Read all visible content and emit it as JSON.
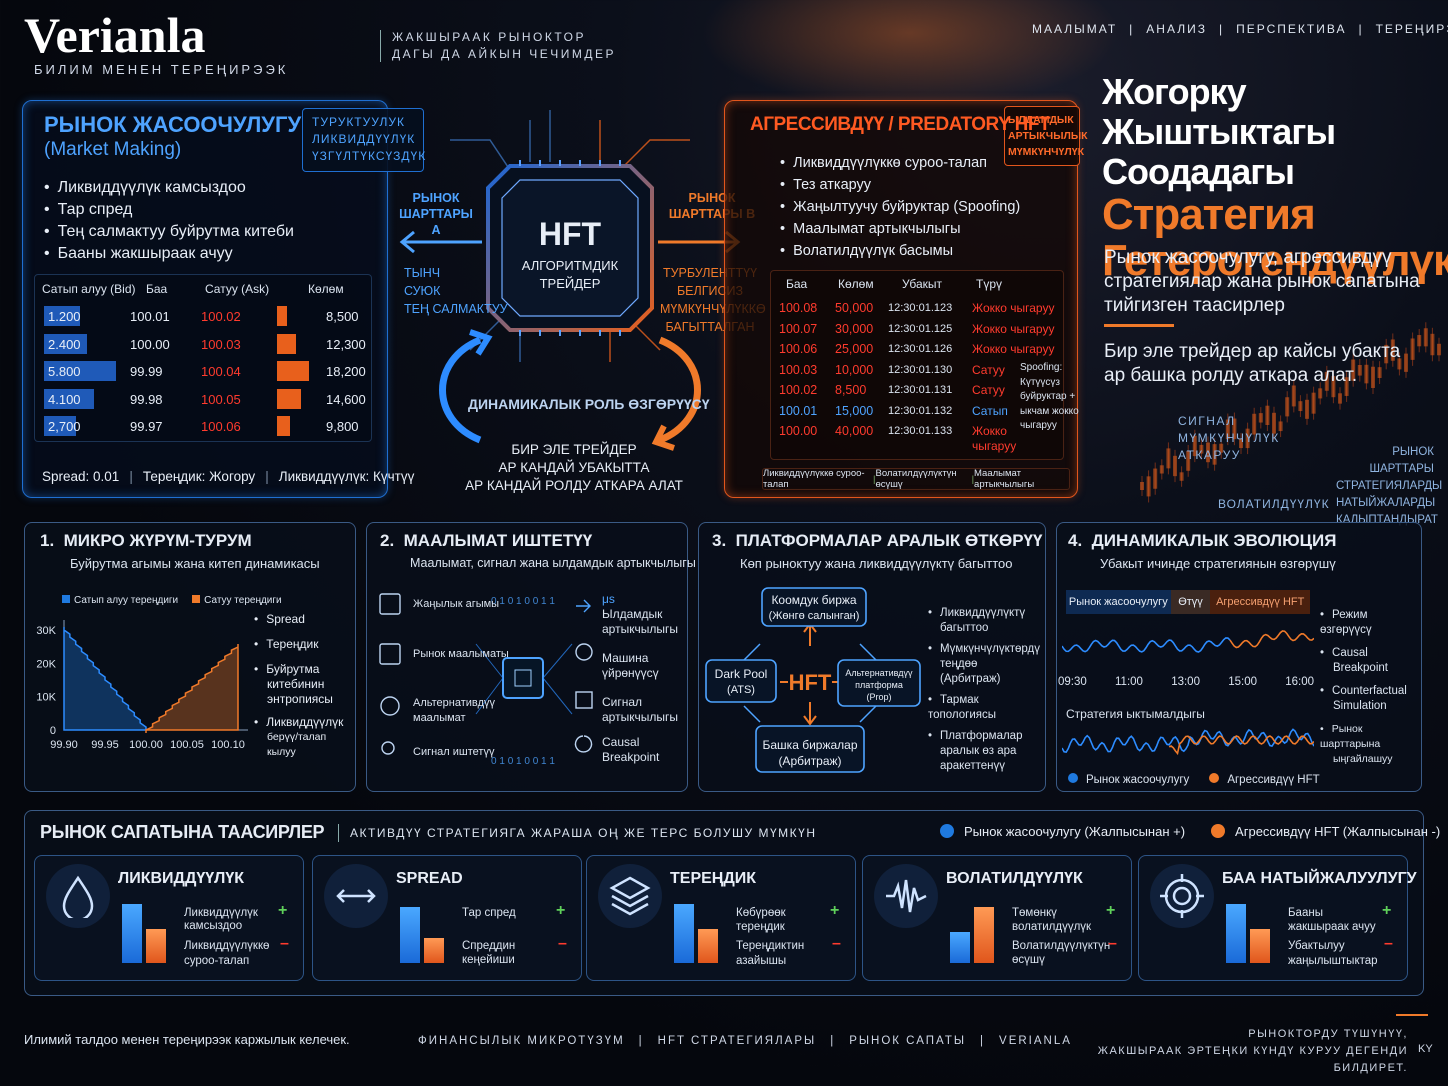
{
  "brand": {
    "logo": "Verianla",
    "tagline": "БИЛИМ МЕНЕН ТЕРЕҢИРЭЭК",
    "slogan_1": "ЖАКШЫРААК РЫНОКТОР",
    "slogan_2": "ДАГЫ ДА АЙКЫН ЧЕЧИМДЕР"
  },
  "topnav": [
    "МААЛЫМАТ",
    "|",
    "АНАЛИЗ",
    "|",
    "ПЕРСПЕКТИВА",
    "|",
    "ТЕРЕҢИРЭЭК"
  ],
  "hero": {
    "title_1": "Жогорку Жыштыктагы",
    "title_2": "Соодадагы",
    "title_3": "Стратегия",
    "title_4": "Гетерогендүүлүк",
    "desc_1": "Рынок жасоочулугу, агрессивдүү",
    "desc_2": "стратегиялар жана рынок сапатына",
    "desc_3": "тийгизген таасирлер",
    "note_1": "Бир эле трейдер ар кайсы убакта",
    "note_2": "ар башка ролду аткара алат.",
    "signal_1": "СИГНАЛ",
    "signal_2": "МҮМКҮНЧҮЛҮК",
    "signal_3": "АТКАРУУ",
    "mc_1": "РЫНОК ШАРТТАРЫ",
    "mc_2": "СТРАТЕГИЯЛАРДЫ",
    "mc_3": "НАТЫЙЖАЛАРДЫ",
    "mc_4": "КАЛЫПТАНДЫРАТ",
    "vol": "ВОЛАТИЛДҮҮЛҮК"
  },
  "mm": {
    "title": "РЫНОК ЖАСООЧУЛУГУ",
    "subtitle": "(Market Making)",
    "tag_1": "ТУРУКТУУЛУК",
    "tag_2": "ЛИКВИДДҮҮЛҮК",
    "tag_3": "ҮЗГҮЛТҮКСҮЗДҮК",
    "bullets": [
      "Ликвиддүүлүк камсыздоо",
      "Тар спред",
      "Тең салмактуу буйрутма китеби",
      "Бааны жакшыраак ачуу"
    ],
    "headers": [
      "Сатып алуу (Bid)",
      "Баа",
      "Сатуу (Ask)",
      "Көлөм"
    ],
    "rows": [
      {
        "bid": "1.200",
        "price": "100.01",
        "ask": "100.02",
        "vol": "8,500",
        "b": 0.5,
        "v": 0.3
      },
      {
        "bid": "2.400",
        "price": "100.00",
        "ask": "100.03",
        "vol": "12,300",
        "b": 0.6,
        "v": 0.6
      },
      {
        "bid": "5.800",
        "price": "99.99",
        "ask": "100.04",
        "vol": "18,200",
        "b": 1.0,
        "v": 1.0
      },
      {
        "bid": "4.100",
        "price": "99.98",
        "ask": "100.05",
        "vol": "14,600",
        "b": 0.7,
        "v": 0.75
      },
      {
        "bid": "2,700",
        "price": "99.97",
        "ask": "100.06",
        "vol": "9,800",
        "b": 0.45,
        "v": 0.4
      }
    ],
    "foot_1": "Spread: 0.01",
    "foot_2": "Тереңдик: Жогору",
    "foot_3": "Ликвиддүүлүк: Күчтүү"
  },
  "center": {
    "hft": "HFT",
    "algo_1": "АЛГОРИТМДИК",
    "algo_2": "ТРЕЙДЕР",
    "a_1": "РЫНОК",
    "a_2": "ШАРТТАРЫ А",
    "b_1": "РЫНОК",
    "b_2": "ШАРТТАРЫ В",
    "calm_1": "ТЫНЧ",
    "calm_2": "СУЮК",
    "calm_3": "ТЕҢ САЛМАКТУУ",
    "turb_1": "ТУРБУЛЕНТТҮҮ",
    "turb_2": "БЕЛГИСИЗ",
    "turb_3": "МҮМКҮНЧҮЛҮККӨ",
    "turb_4": "БАГЫТТАЛГАН",
    "dyn": "ДИНАМИКАЛЫК РОЛЬ ӨЗГӨРҮҮСҮ",
    "one_1": "БИР ЭЛЕ ТРЕЙДЕР",
    "one_2": "АР КАНДАЙ УБАКЫТТА",
    "one_3": "АР КАНДАЙ РОЛДУ АТКАРА АЛАТ"
  },
  "ag": {
    "title": "АГРЕССИВДҮҮ / PREDATORY HFT",
    "tag_1": "ЫЛДАМДЫК",
    "tag_2": "АРТЫКЧЫЛЫК",
    "tag_3": "МҮМКҮНЧҮЛҮК",
    "bullets": [
      "Ликвиддүүлүккө суроо-талап",
      "Тез аткаруу",
      "Жаңылтуучу буйруктар (Spoofing)",
      "Маалымат артыкчылыгы",
      "Волатилдүүлүк басымы"
    ],
    "headers": [
      "Баа",
      "Көлөм",
      "Убакыт",
      "Түрү"
    ],
    "rows": [
      {
        "p": "100.08",
        "v": "50,000",
        "t": "12:30:01.123",
        "k": "Жокко чыгаруу",
        "c": "r"
      },
      {
        "p": "100.07",
        "v": "30,000",
        "t": "12:30:01.125",
        "k": "Жокко чыгаруу",
        "c": "r"
      },
      {
        "p": "100.06",
        "v": "25,000",
        "t": "12:30:01.126",
        "k": "Жокко чыгаруу",
        "c": "r"
      },
      {
        "p": "100.03",
        "v": "10,000",
        "t": "12:30:01.130",
        "k": "Сатуу",
        "c": "r"
      },
      {
        "p": "100.02",
        "v": "8,500",
        "t": "12:30:01.131",
        "k": "Сатуу",
        "c": "r"
      },
      {
        "p": "100.01",
        "v": "15,000",
        "t": "12:30:01.132",
        "k": "Сатып",
        "c": "b"
      },
      {
        "p": "100.00",
        "v": "40,000",
        "t": "12:30:01.133",
        "k": "Жокко",
        "k2": "чыгаруу",
        "c": "r"
      }
    ],
    "spoof": [
      "Spoofing:",
      "Күтүүсүз",
      "буйруктар +",
      "ыкчам жокко",
      "чыгаруу"
    ],
    "foot": [
      "Ликвиддүүлүккө суроо-талап",
      "Волатилдүүлүктүн өсүшү",
      "Маалымат артыкчылыгы"
    ]
  },
  "p1": {
    "num": "1.",
    "title": "МИКРО ЖҮРҮМ-ТУРУМ",
    "sub": "Буйрутма агымы жана китеп динамикасы",
    "leg_bid": "Сатып алуу тереңдиги",
    "leg_ask": "Сатуу тереңдиги",
    "yt": [
      "30K",
      "20K",
      "10K",
      "0"
    ],
    "xt": [
      "99.90",
      "99.95",
      "100.00",
      "100.05",
      "100.10"
    ],
    "bul": [
      "Spread",
      "Тереңдик",
      "Буйрутма",
      "китебинин",
      "энтропиясы",
      "Ликвиддүүлүк",
      "берүү/талап кылуу"
    ]
  },
  "p2": {
    "num": "2.",
    "title": "МААЛЫМАТ ИШТЕТҮҮ",
    "sub": "Маалымат, сигнал жана ылдамдык артыкчылыгы",
    "left": [
      "Жаңылык агымы",
      "Рынок маалыматы",
      "Альтернативдүү",
      "маалымат",
      "Сигнал иштетүү"
    ],
    "right": [
      "μs",
      "Ылдамдык",
      "артыкчылыгы",
      "Машина",
      "үйрөнүүсү",
      "Сигнал",
      "артыкчылыгы",
      "Causal",
      "Breakpoint"
    ],
    "bits": "0 1 0 1 0 0 1 1"
  },
  "p3": {
    "num": "3.",
    "title": "ПЛАТФОРМАЛАР АРАЛЫК ӨТКӨРҮҮ",
    "sub": "Көп рыноктуу жана ликвиддүүлүктү багыттоо",
    "top_1": "Коомдук биржа",
    "top_2": "(Жөнгө салынган)",
    "left_1": "Dark Pool",
    "left_2": "(ATS)",
    "right_1": "Альтернативдүү",
    "right_2": "платформа",
    "right_3": "(Prop)",
    "bot_1": "Башка биржалар",
    "bot_2": "(Арбитраж)",
    "hft": "HFT",
    "bul": [
      "Ликвиддүүлүктү",
      "багыттоо",
      "Мүмкүнчүлүктөрдү",
      "теңдөө (Арбитраж)",
      "Тармак топологиясы",
      "Платформалар",
      "аралык өз ара",
      "аракеттенүү"
    ]
  },
  "p4": {
    "num": "4.",
    "title": "ДИНАМИКАЛЫК ЭВОЛЮЦИЯ",
    "sub": "Убакыт ичинде стратегиянын өзгөрүшү",
    "seg": [
      "Рынок жасоочулугу",
      "Өтүү",
      "Агрессивдүү HFT"
    ],
    "xt": [
      "09:30",
      "11:00",
      "13:00",
      "15:00",
      "16:00"
    ],
    "prob": "Стратегия ыктымалдыгы",
    "leg_1": "Рынок жасоочулугу",
    "leg_2": "Агрессивдүү HFT",
    "bul": [
      "Режим өзгөрүүсү",
      "Causal",
      "Breakpoint",
      "Counterfactual",
      "Simulation",
      "Рынок шарттарына",
      "ыңгайлашуу"
    ]
  },
  "impact": {
    "title": "РЫНОК САПАТЫНА ТААСИРЛЕР",
    "sub": "АКТИВДҮҮ СТРАТЕГИЯГА ЖАРАША ОҢ ЖЕ ТЕРС БОЛУШУ МҮМКҮН",
    "leg_1": "Рынок жасоочулугу (Жалпысынан +)",
    "leg_2": "Агрессивдүү HFT (Жалпысынан -)",
    "cards": [
      {
        "t": "ЛИКВИДДҮҮЛҮК",
        "a": "Ликвиддүүлүк",
        "a2": "камсыздоо",
        "b": "Ликвиддүүлүккө",
        "b2": "суроо-талап",
        "bl": 0.95,
        "or": 0.55,
        "icon": "drop-icon"
      },
      {
        "t": "SPREAD",
        "a": "Тар спред",
        "a2": "",
        "b": "Спреддин кеңейиши",
        "b2": "",
        "bl": 0.9,
        "or": 0.4,
        "icon": "arrows-icon"
      },
      {
        "t": "ТЕРЕҢДИК",
        "a": "Көбүрөөк тереңдик",
        "a2": "",
        "b": "Тереңдиктин",
        "b2": "азайышы",
        "bl": 0.95,
        "or": 0.55,
        "icon": "layers-icon"
      },
      {
        "t": "ВОЛАТИЛДҮҮЛҮК",
        "a": "Төмөнкү волатилдүүлүк",
        "a2": "",
        "b": "Волатилдүүлүктүн өсүшү",
        "b2": "",
        "bl": 0.5,
        "or": 0.9,
        "icon": "wave-icon"
      },
      {
        "t": "БАА НАТЫЙЖАЛУУЛУГУ",
        "a": "Бааны жакшыраак ачуу",
        "a2": "",
        "b": "Убактылуу",
        "b2": "жаңылыштыктар",
        "bl": 0.95,
        "or": 0.55,
        "icon": "target-icon"
      }
    ]
  },
  "footer": {
    "left": "Илимий талдоо менен тереңирээк каржылык келечек.",
    "nav": [
      "ФИНАНСЫЛЫК МИКРОТҮЗҮМ",
      "|",
      "HFT СТРАТЕГИЯЛАРЫ",
      "|",
      "РЫНОК САПАТЫ",
      "|",
      "VERIANLA"
    ],
    "right_1": "РЫНОКТОРДУ ТҮШҮНҮҮ,",
    "right_2": "ЖАКШЫРААК ЭРТЕҢКИ КҮНДҮ КУРУУ ДЕГЕНДИ БИЛДИРЕТ.",
    "right_3": "KY"
  },
  "colors": {
    "blue": "#1f7ae0",
    "orange": "#f07a2a",
    "red": "#ff3b2e"
  }
}
